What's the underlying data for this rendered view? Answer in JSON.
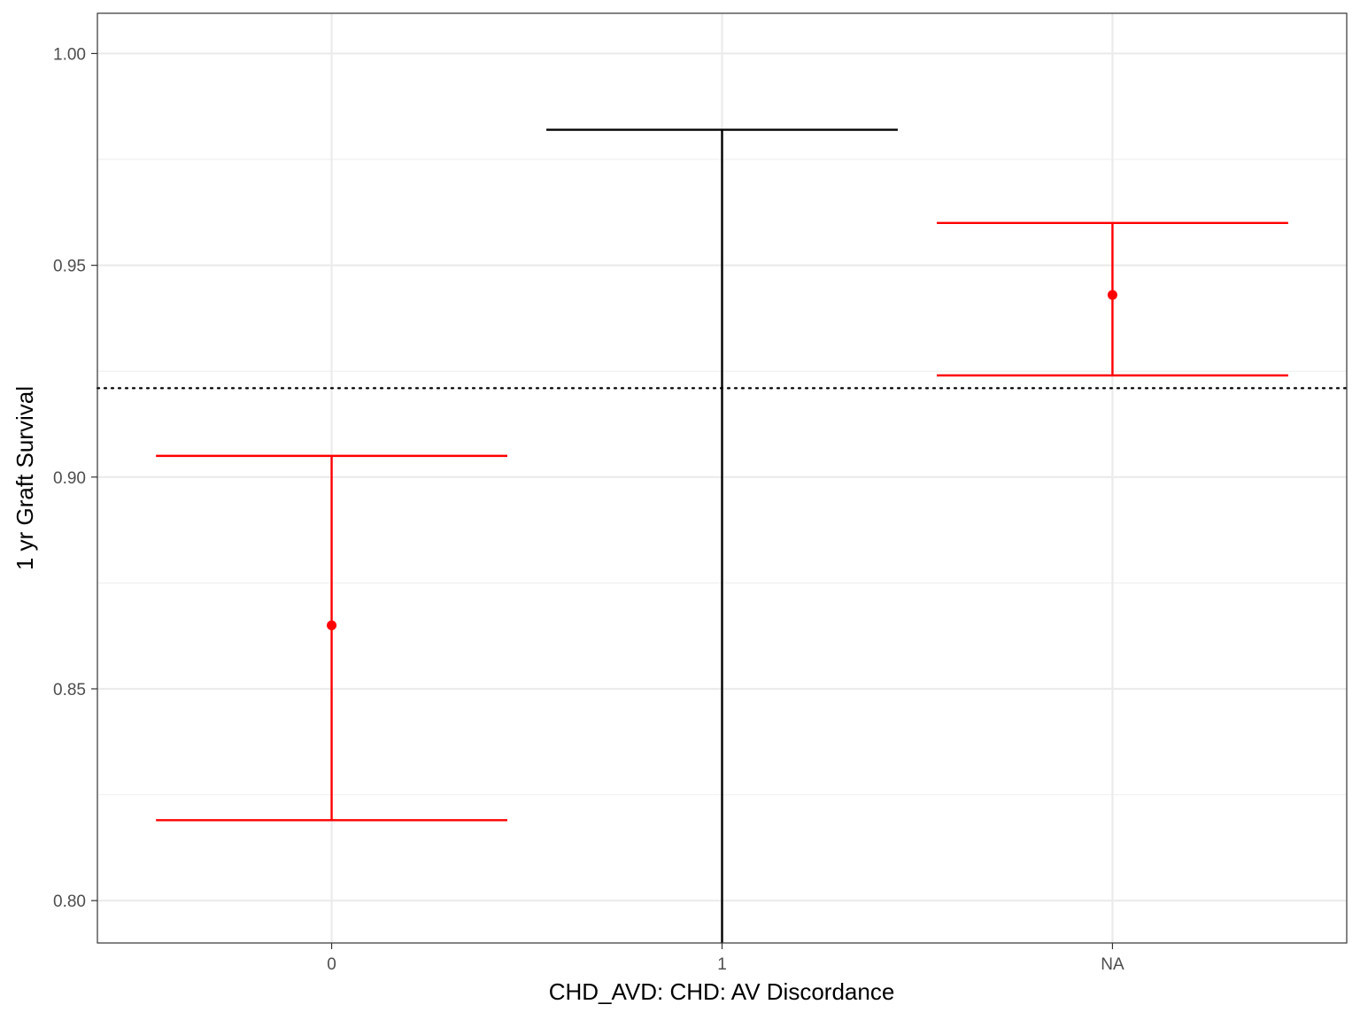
{
  "chart_data": {
    "type": "errorbar",
    "xlabel": "CHD_AVD: CHD: AV Discordance",
    "ylabel": "1 yr Graft Survival",
    "categories": [
      "0",
      "1",
      "NA"
    ],
    "ylim": [
      0.79,
      1.0095
    ],
    "yticks": [
      0.8,
      0.85,
      0.9,
      0.95,
      1.0
    ],
    "ytick_labels": [
      "0.80",
      "0.85",
      "0.90",
      "0.95",
      "1.00"
    ],
    "reference_line": {
      "y": 0.921,
      "style": "dotted",
      "color": "#000000"
    },
    "points": [
      {
        "category": "0",
        "estimate": 0.865,
        "lower": 0.819,
        "upper": 0.905,
        "color": "#ff0000",
        "show_point": true
      },
      {
        "category": "1",
        "estimate": null,
        "lower": 0.79,
        "upper": 0.982,
        "color": "#000000",
        "show_point": false,
        "lower_open": true
      },
      {
        "category": "NA",
        "estimate": 0.943,
        "lower": 0.924,
        "upper": 0.96,
        "color": "#ff0000",
        "show_point": true
      }
    ],
    "grid": true,
    "legend": "none"
  }
}
